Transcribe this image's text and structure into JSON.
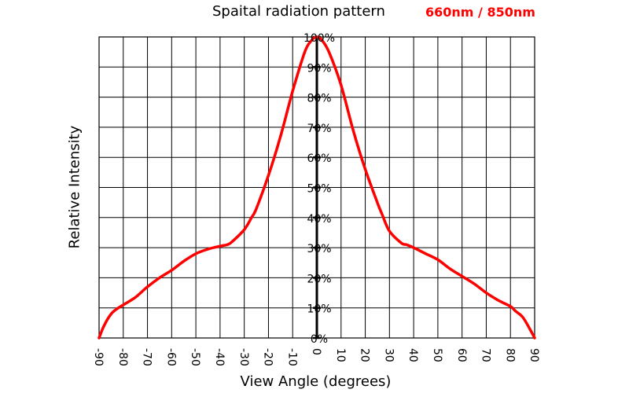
{
  "chart_data": {
    "type": "line",
    "title": "Spaital radiation pattern",
    "subtitle": "660nm / 850nm",
    "xlabel": "View Angle (degrees)",
    "ylabel": "Relative Intensity",
    "xlim": [
      -90,
      90
    ],
    "ylim": [
      0,
      100
    ],
    "x_ticks": [
      -90,
      -80,
      -70,
      -60,
      -50,
      -40,
      -30,
      -20,
      -10,
      0,
      10,
      20,
      30,
      40,
      50,
      60,
      70,
      80,
      90
    ],
    "y_ticks": [
      "0%",
      "10%",
      "20%",
      "30%",
      "40%",
      "50%",
      "60%",
      "70%",
      "80%",
      "90%",
      "100%"
    ],
    "grid": true,
    "line_color": "#ff0000",
    "series": [
      {
        "x": [
          -90,
          -88,
          -85,
          -82,
          -80,
          -75,
          -70,
          -65,
          -60,
          -55,
          -50,
          -45,
          -40,
          -37,
          -35,
          -30,
          -27,
          -25,
          -20,
          -15,
          -10,
          -5,
          -2,
          0,
          2,
          5,
          10,
          15,
          20,
          25,
          27,
          30,
          35,
          37,
          40,
          45,
          50,
          55,
          60,
          65,
          70,
          75,
          80,
          82,
          85,
          88,
          90
        ],
        "y": [
          0,
          4,
          8,
          10,
          11,
          13.5,
          17,
          20,
          22.5,
          25.5,
          28,
          29.5,
          30.5,
          31,
          32,
          36,
          40,
          43,
          54,
          67,
          82,
          95,
          99,
          100,
          99,
          95,
          84,
          69,
          56,
          45,
          41,
          35.5,
          31.5,
          31,
          30,
          28,
          26,
          23,
          20.5,
          18,
          15,
          12.5,
          10.5,
          9,
          7,
          3,
          0
        ]
      }
    ]
  }
}
